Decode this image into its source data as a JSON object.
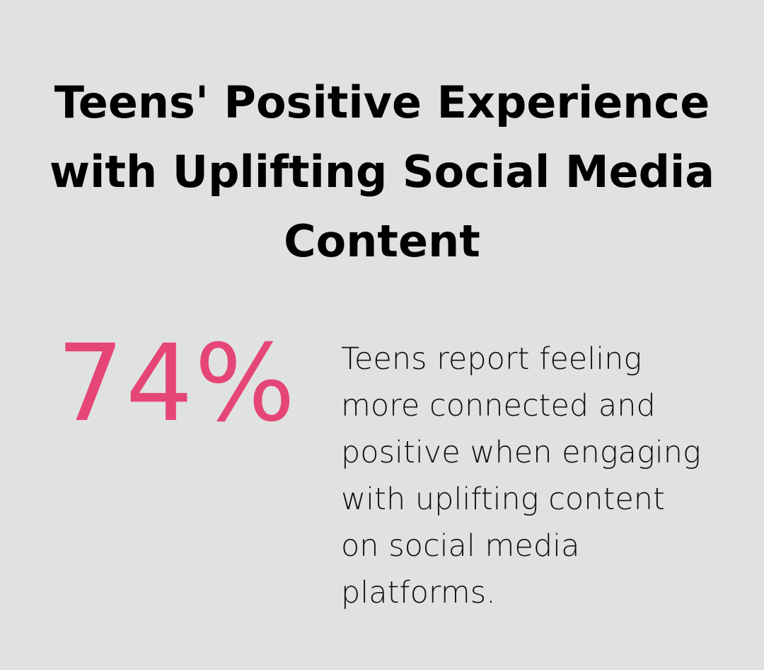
{
  "title": {
    "lines": [
      "Teens' Positive Experience",
      "with Uplifting Social Media",
      "Content"
    ]
  },
  "stat": {
    "value": "74%",
    "color": "#e64677"
  },
  "description": {
    "lines": [
      "Teens report feeling",
      "more connected and",
      "positive when engaging",
      "with uplifting content",
      "on social media",
      "platforms."
    ]
  },
  "colors": {
    "background": "#e0e2e1",
    "title": "#000000",
    "accent": "#e64677",
    "body_text": "#111111"
  }
}
